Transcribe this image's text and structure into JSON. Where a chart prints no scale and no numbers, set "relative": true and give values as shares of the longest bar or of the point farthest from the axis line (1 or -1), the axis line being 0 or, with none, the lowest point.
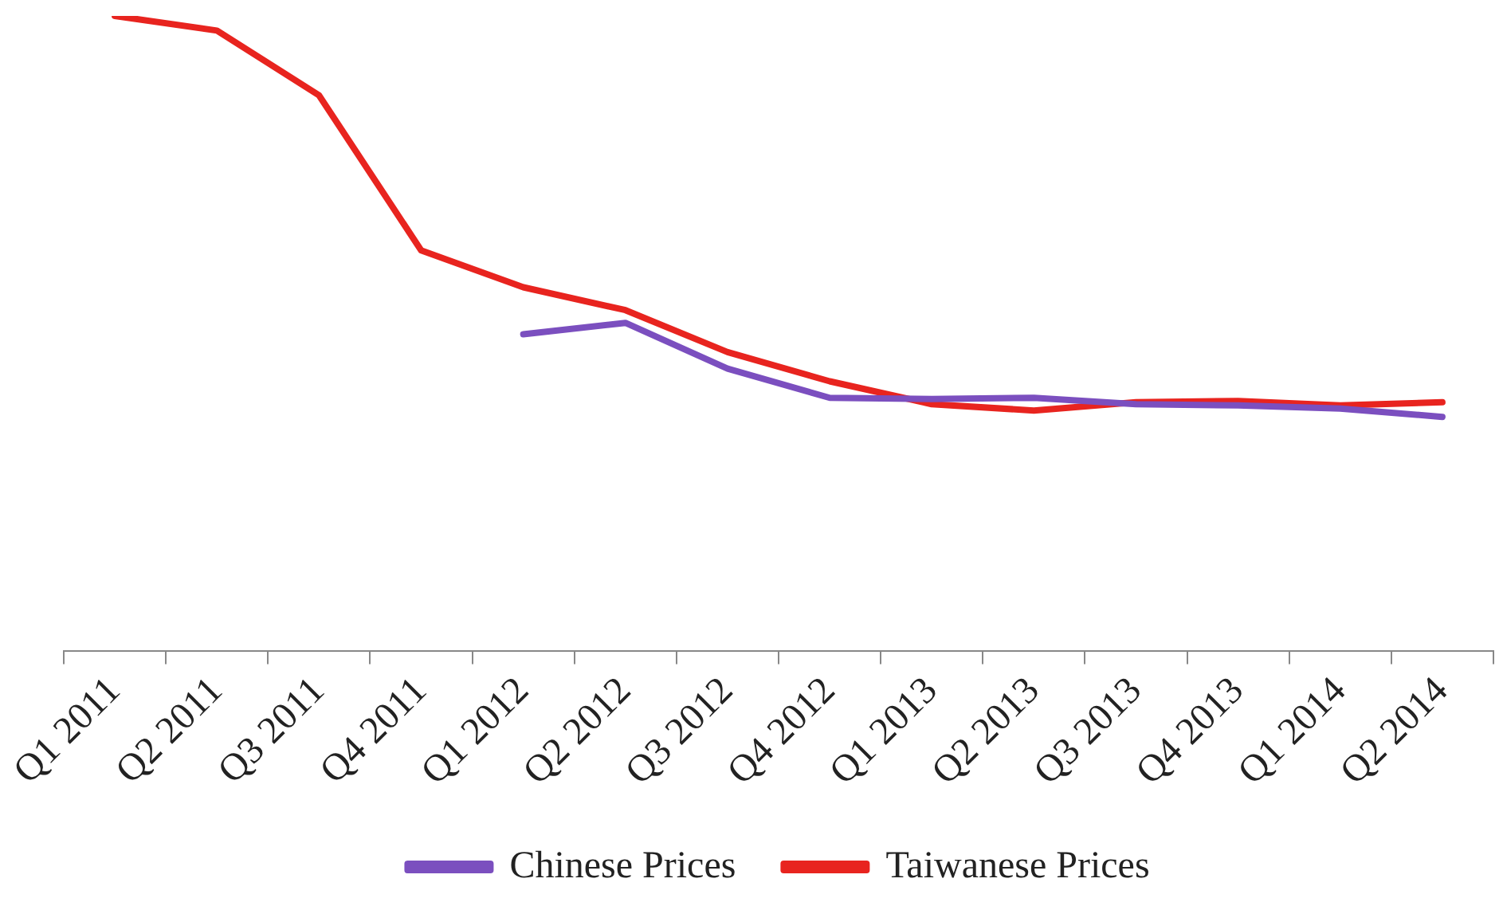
{
  "chart_data": {
    "type": "line",
    "relative": true,
    "categories": [
      "Q1 2011",
      "Q2 2011",
      "Q3 2011",
      "Q4 2011",
      "Q1 2012",
      "Q2 2012",
      "Q3 2012",
      "Q4 2012",
      "Q1 2013",
      "Q2 2013",
      "Q3 2013",
      "Q4 2013",
      "Q1 2014",
      "Q2 2014"
    ],
    "series": [
      {
        "name": "Chinese Prices",
        "color": "#7b4fbf",
        "values": [
          null,
          null,
          null,
          null,
          0.499,
          0.517,
          0.445,
          0.399,
          0.397,
          0.399,
          0.389,
          0.387,
          0.382,
          0.369
        ]
      },
      {
        "name": "Taiwanese Prices",
        "color": "#e8241f",
        "values": [
          1,
          0.977,
          0.875,
          0.631,
          0.573,
          0.537,
          0.471,
          0.425,
          0.389,
          0.379,
          0.392,
          0.394,
          0.387,
          0.392
        ]
      }
    ],
    "legend": "bottom",
    "grid": false,
    "marker": "none",
    "line_style": "solid"
  }
}
